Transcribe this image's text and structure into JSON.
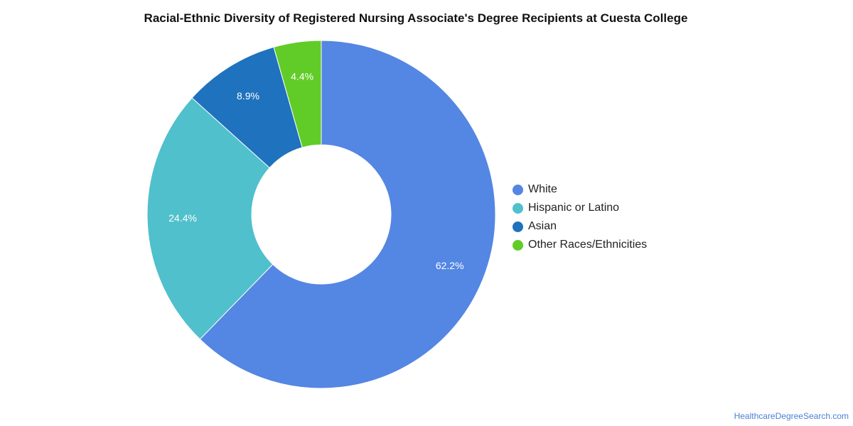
{
  "chart_data": {
    "type": "pie",
    "variant": "donut",
    "title": "Racial-Ethnic Diversity of Registered Nursing Associate's Degree Recipients at Cuesta College",
    "categories": [
      "White",
      "Hispanic or Latino",
      "Asian",
      "Other Races/Ethnicities"
    ],
    "values": [
      62.2,
      24.4,
      8.9,
      4.4
    ],
    "value_labels": [
      "62.2%",
      "24.4%",
      "8.9%",
      "4.4%"
    ],
    "colors": [
      "#5486e3",
      "#50c0cc",
      "#1f72bd",
      "#61cc27"
    ],
    "legend_position": "right"
  },
  "credit": "HealthcareDegreeSearch.com"
}
